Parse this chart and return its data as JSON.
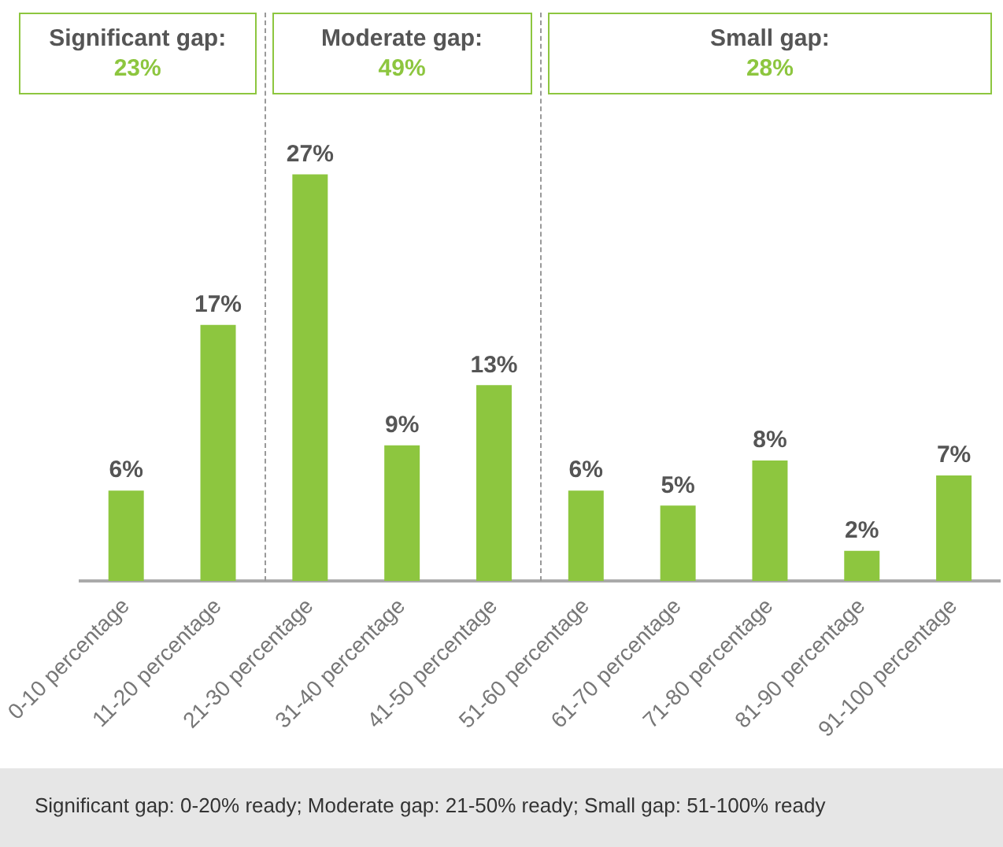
{
  "chart_data": {
    "type": "bar",
    "categories": [
      "0-10 percentage",
      "11-20 percentage",
      "21-30 percentage",
      "31-40 percentage",
      "41-50 percentage",
      "51-60 percentage",
      "61-70 percentage",
      "71-80 percentage",
      "81-90 percentage",
      "91-100 percentage"
    ],
    "values": [
      6,
      17,
      27,
      9,
      13,
      6,
      5,
      8,
      2,
      7
    ],
    "value_labels": [
      "6%",
      "17%",
      "27%",
      "9%",
      "13%",
      "6%",
      "5%",
      "8%",
      "2%",
      "7%"
    ],
    "color": "#8dc63f",
    "grid": false,
    "legend": false,
    "tick_labels": "x",
    "annotations": [
      "Significant gap: 23%",
      "Moderate gap: 49%",
      "Small gap: 28%",
      "Significant gap: 0-20% ready; Moderate gap: 21-50% ready; Small gap: 51-100% ready"
    ]
  }
}
